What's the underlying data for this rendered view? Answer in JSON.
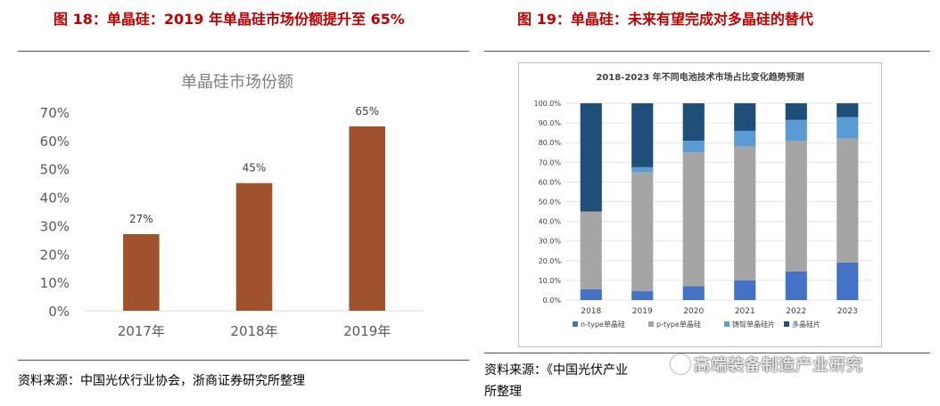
{
  "left_panel": {
    "figure_title": "图 18：单晶硅：2019 年单晶硅市场份额提升至 65%",
    "source": "资料来源：中国光伏行业协会，浙商证券研究所整理"
  },
  "right_panel": {
    "figure_title": "图 19：单晶硅：未来有望完成对多晶硅的替代",
    "source_line1": "资料来源：《中国光伏产业",
    "source_line2": "所整理",
    "watermark": "高端装备制造产业研究"
  },
  "colors": {
    "title_red": "#c00000",
    "bar_brown": "#a0522d",
    "n_type": "#4472c4",
    "p_type": "#a5a5a5",
    "cast_mono": "#5b9bd5",
    "multi": "#1f4e79"
  },
  "chart_data": [
    {
      "type": "bar",
      "title": "单晶硅市场份额",
      "categories": [
        "2017年",
        "2018年",
        "2019年"
      ],
      "values": [
        27,
        45,
        65
      ],
      "data_labels": [
        "27%",
        "45%",
        "65%"
      ],
      "ylim": [
        0,
        70
      ],
      "yticks": [
        "0%",
        "10%",
        "20%",
        "30%",
        "40%",
        "50%",
        "60%",
        "70%"
      ],
      "grid": false,
      "legend": "none"
    },
    {
      "type": "bar",
      "stacked": true,
      "title": "2018-2023 年不同电池技术市场占比变化趋势预测",
      "categories": [
        "2018",
        "2019",
        "2020",
        "2021",
        "2022",
        "2023"
      ],
      "ylim": [
        0,
        100
      ],
      "yticks": [
        "0.0%",
        "10.0%",
        "20.0%",
        "30.0%",
        "40.0%",
        "50.0%",
        "60.0%",
        "70.0%",
        "80.0%",
        "90.0%",
        "100.0%"
      ],
      "grid": true,
      "legend": "bottom",
      "series": [
        {
          "name": "n-type单晶硅",
          "values": [
            5.5,
            4.5,
            7,
            10,
            14.5,
            19
          ]
        },
        {
          "name": "p-type单晶硅",
          "values": [
            39.5,
            60.5,
            68,
            68,
            66.5,
            63
          ]
        },
        {
          "name": "铸锭单晶硅片",
          "values": [
            0,
            2.5,
            6,
            8,
            10.5,
            11
          ]
        },
        {
          "name": "多晶硅片",
          "values": [
            55,
            32.5,
            19,
            14,
            8.5,
            7
          ]
        }
      ]
    }
  ]
}
